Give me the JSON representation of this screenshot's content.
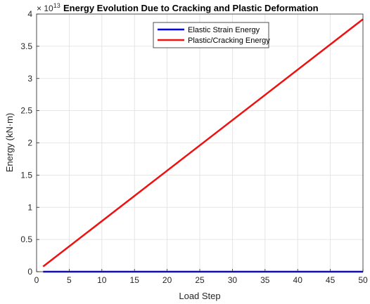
{
  "chart_data": {
    "type": "line",
    "title": "Energy Evolution Due to Cracking and Plastic Deformation",
    "xlabel": "Load Step",
    "ylabel": "Energy (kN·m)",
    "exponent_base": "× 10",
    "exponent_power": "13",
    "xlim": [
      0,
      50
    ],
    "ylim": [
      0,
      4
    ],
    "xticks": [
      0,
      5,
      10,
      15,
      20,
      25,
      30,
      35,
      40,
      45,
      50
    ],
    "yticks": [
      0,
      0.5,
      1,
      1.5,
      2,
      2.5,
      3,
      3.5,
      4
    ],
    "ytick_labels": [
      "0",
      "0.5",
      "1",
      "1.5",
      "2",
      "2.5",
      "3",
      "3.5",
      "4"
    ],
    "grid": true,
    "legend_position": "top-center",
    "series": [
      {
        "name": "Elastic Strain Energy",
        "color": "#0000ff",
        "x": [
          1,
          50
        ],
        "y": [
          0.0,
          0.0
        ]
      },
      {
        "name": "Plastic/Cracking Energy",
        "color": "#ee1111",
        "x": [
          1,
          50
        ],
        "y": [
          0.08,
          3.92
        ]
      }
    ]
  }
}
